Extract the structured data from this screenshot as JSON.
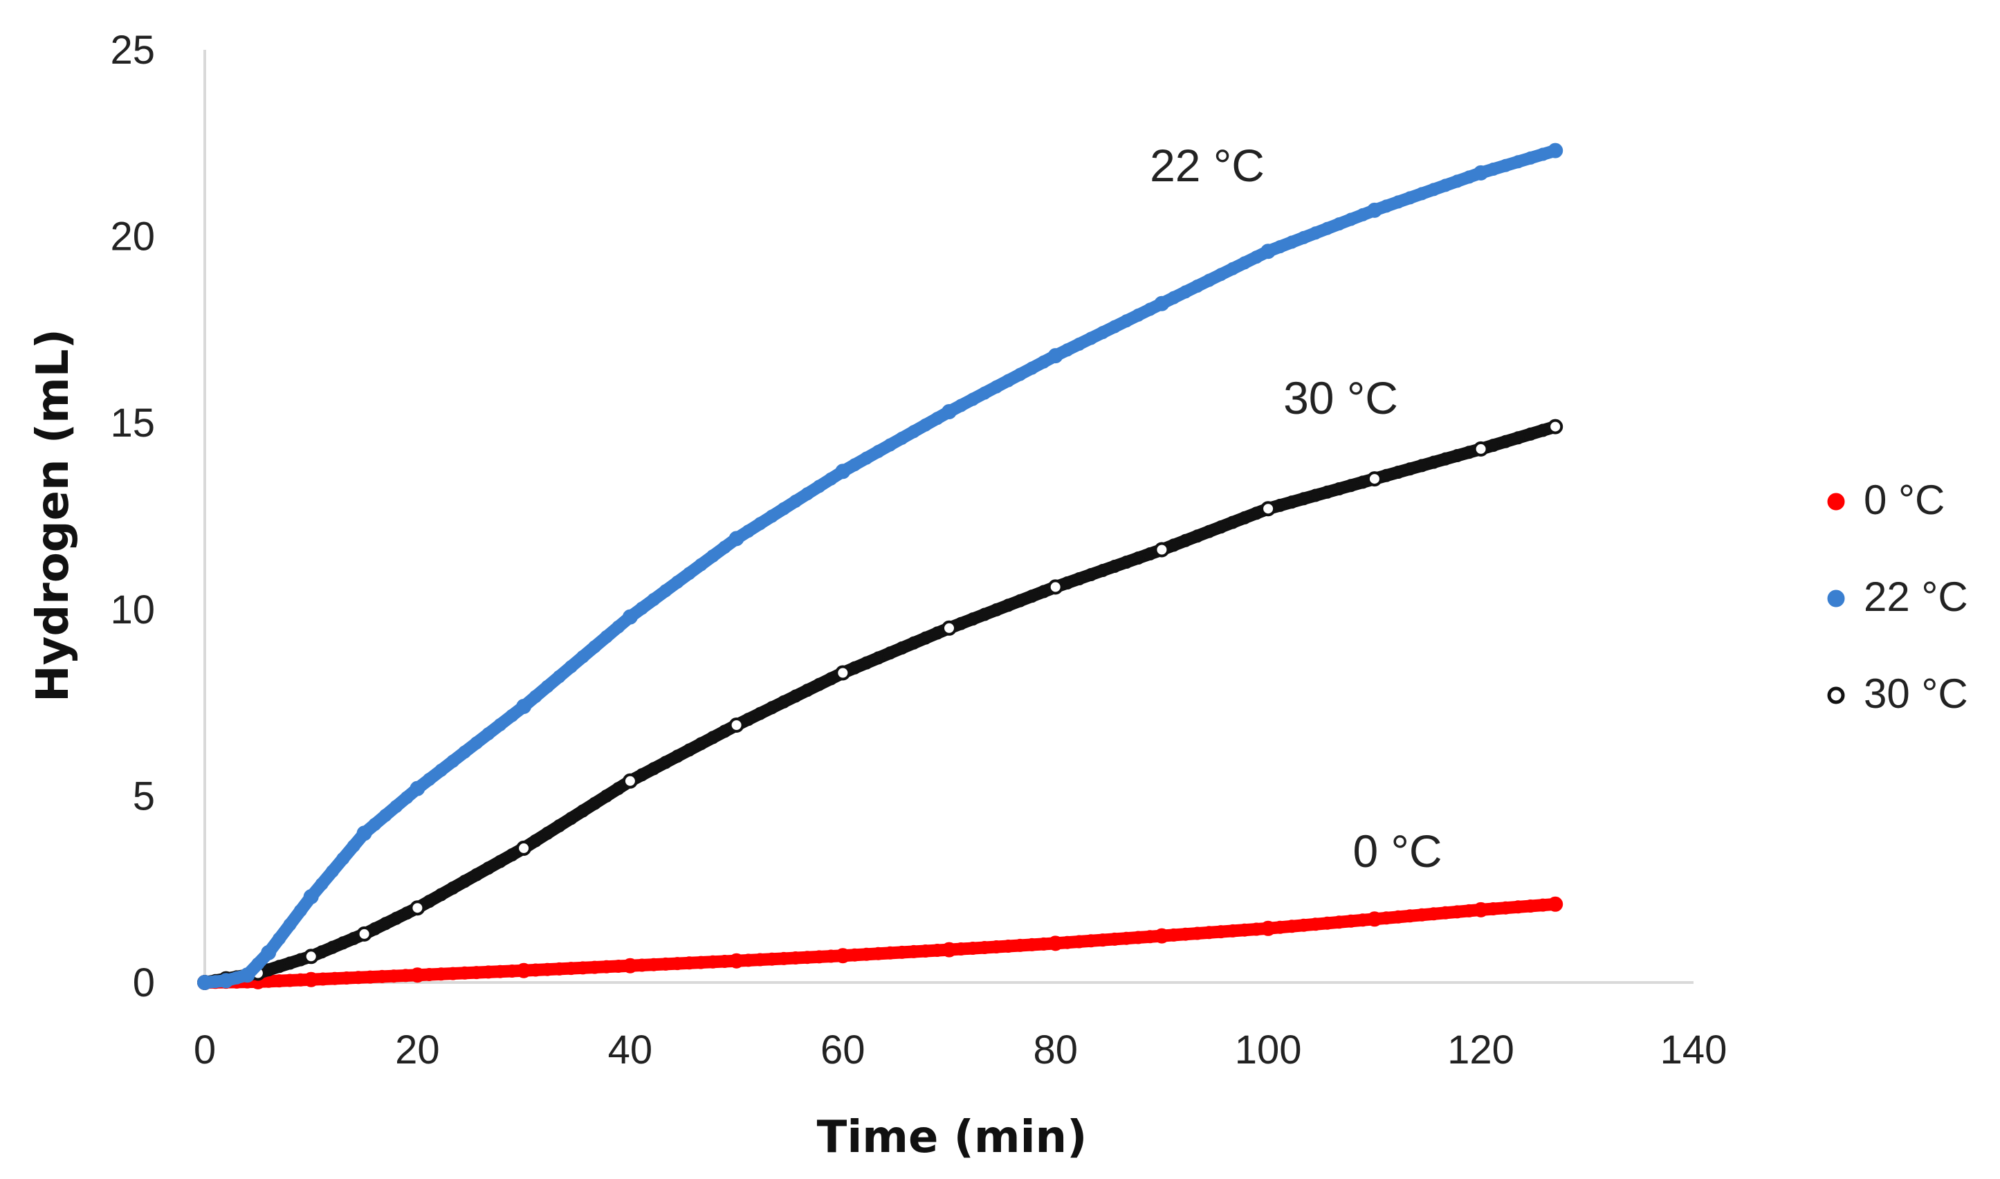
{
  "chart_data": {
    "type": "scatter",
    "title": "",
    "xlabel": "Time (min)",
    "ylabel": "Hydrogen (mL)",
    "xlim": [
      0,
      140
    ],
    "ylim": [
      0,
      25
    ],
    "xticks": [
      0,
      20,
      40,
      60,
      80,
      100,
      120,
      140
    ],
    "yticks": [
      0,
      5,
      10,
      15,
      20,
      25
    ],
    "grid": false,
    "legend_position": "right",
    "series": [
      {
        "name": "0 °C",
        "color": "#ff0000",
        "marker_fill": "#ff0000",
        "annotation": "0 °C",
        "points": [
          [
            0,
            0
          ],
          [
            5,
            0.02
          ],
          [
            10,
            0.08
          ],
          [
            20,
            0.2
          ],
          [
            30,
            0.32
          ],
          [
            40,
            0.45
          ],
          [
            50,
            0.58
          ],
          [
            60,
            0.72
          ],
          [
            70,
            0.88
          ],
          [
            80,
            1.05
          ],
          [
            90,
            1.25
          ],
          [
            100,
            1.45
          ],
          [
            110,
            1.7
          ],
          [
            120,
            1.95
          ],
          [
            127,
            2.1
          ]
        ]
      },
      {
        "name": "22 °C",
        "color": "#3a7fd0",
        "marker_fill": "#3a7fd0",
        "annotation": "22 °C",
        "points": [
          [
            0,
            0
          ],
          [
            2,
            0.05
          ],
          [
            4,
            0.2
          ],
          [
            6,
            0.8
          ],
          [
            10,
            2.3
          ],
          [
            15,
            4.0
          ],
          [
            20,
            5.2
          ],
          [
            30,
            7.4
          ],
          [
            40,
            9.8
          ],
          [
            50,
            11.9
          ],
          [
            60,
            13.7
          ],
          [
            70,
            15.3
          ],
          [
            80,
            16.8
          ],
          [
            90,
            18.2
          ],
          [
            100,
            19.6
          ],
          [
            110,
            20.7
          ],
          [
            120,
            21.7
          ],
          [
            127,
            22.3
          ]
        ]
      },
      {
        "name": "30 °C",
        "color": "#111111",
        "marker_fill": "#ffffff",
        "annotation": "30 °C",
        "points": [
          [
            0,
            0
          ],
          [
            2,
            0.1
          ],
          [
            5,
            0.25
          ],
          [
            10,
            0.7
          ],
          [
            15,
            1.3
          ],
          [
            20,
            2.0
          ],
          [
            30,
            3.6
          ],
          [
            40,
            5.4
          ],
          [
            50,
            6.9
          ],
          [
            60,
            8.3
          ],
          [
            70,
            9.5
          ],
          [
            80,
            10.6
          ],
          [
            90,
            11.6
          ],
          [
            100,
            12.7
          ],
          [
            110,
            13.5
          ],
          [
            120,
            14.3
          ],
          [
            127,
            14.9
          ]
        ]
      }
    ]
  }
}
